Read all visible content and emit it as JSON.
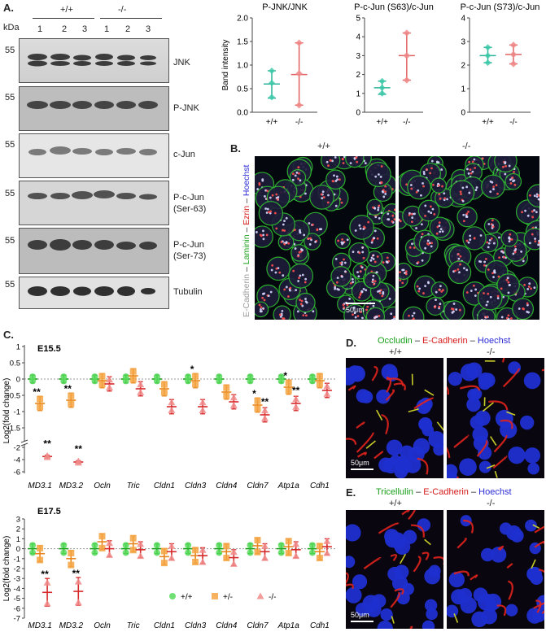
{
  "panelA": {
    "letter": "A.",
    "kda": "kDa",
    "genotype_wt": "+/+",
    "genotype_ko": "-/-",
    "lanes": [
      "1",
      "2",
      "3",
      "1",
      "2",
      "3"
    ],
    "blots": [
      {
        "label": "JNK",
        "marker": "55"
      },
      {
        "label": "P-JNK",
        "marker": "55"
      },
      {
        "label": "c-Jun",
        "marker": "55"
      },
      {
        "label": "P-c-Jun\n(Ser-63)",
        "marker": "55"
      },
      {
        "label": "P-c-Jun\n(Ser-73)",
        "marker": "55"
      },
      {
        "label": "Tubulin",
        "marker": "55"
      }
    ]
  },
  "quant_charts": [
    {
      "title": "P-JNK/JNK",
      "ylabel": "Band intensity",
      "ylim": [
        0,
        2.0
      ],
      "yticks": [
        "0.0",
        "0.5",
        "1.0",
        "1.5",
        "2.0"
      ],
      "categories": [
        "+/+",
        "-/-"
      ],
      "means": [
        0.6,
        0.8
      ],
      "sd": [
        [
          0.3,
          0.88
        ],
        [
          0.15,
          1.47
        ]
      ],
      "points": [
        [
          0.32,
          0.62,
          0.88
        ],
        [
          0.15,
          0.82,
          1.47
        ]
      ]
    },
    {
      "title": "P-c-Jun (S63)/c-Jun",
      "ylabel": "",
      "ylim": [
        0,
        5
      ],
      "yticks": [
        "0",
        "1",
        "2",
        "3",
        "4",
        "5"
      ],
      "categories": [
        "+/+",
        "-/-"
      ],
      "means": [
        1.3,
        3.0
      ],
      "sd": [
        [
          0.95,
          1.65
        ],
        [
          1.7,
          4.2
        ]
      ],
      "points": [
        [
          1.0,
          1.3,
          1.65
        ],
        [
          1.7,
          3.0,
          4.2
        ]
      ]
    },
    {
      "title": "P-c-Jun (S73)/c-Jun",
      "ylabel": "",
      "ylim": [
        0,
        4
      ],
      "yticks": [
        "0",
        "1",
        "2",
        "3",
        "4"
      ],
      "categories": [
        "+/+",
        "-/-"
      ],
      "means": [
        2.4,
        2.45
      ],
      "sd": [
        [
          2.1,
          2.75
        ],
        [
          2.05,
          2.85
        ]
      ],
      "points": [
        [
          2.1,
          2.4,
          2.75
        ],
        [
          2.05,
          2.45,
          2.85
        ]
      ]
    }
  ],
  "panelB": {
    "letter": "B.",
    "genotype_wt": "+/+",
    "genotype_ko": "-/-",
    "stain_ecad": "E-Cadherin",
    "stain_lam": "Laminin",
    "stain_ezr": "Ezrin",
    "stain_hoe": "Hoechst",
    "sep": " – ",
    "scalebar": "50μm",
    "colors": {
      "ecad": "#b5b5b5",
      "lam": "#1aa01a",
      "ezr": "#d81b1b",
      "hoe": "#2b2bd8"
    }
  },
  "panelC": {
    "letter": "C.",
    "genes": [
      "MD3.1",
      "MD3.2",
      "Ocln",
      "Tric",
      "Cldn1",
      "Cldn3",
      "Cldn4",
      "Cldn7",
      "Atp1a",
      "Cdh1"
    ],
    "ylabel": "Log2(fold change)",
    "legend": [
      "+/+",
      "+/-",
      "-/-"
    ],
    "colors": {
      "wt": "#57d95c",
      "het": "#f5a442",
      "ko": "#f08a8a",
      "wt_line": "#1a9e1a",
      "het_line": "#e8851c",
      "ko_line": "#d62828"
    }
  },
  "chart_data": [
    {
      "type": "scatter",
      "title": "E15.5",
      "categories": [
        "MD3.1",
        "MD3.2",
        "Ocln",
        "Tric",
        "Cldn1",
        "Cldn3",
        "Cldn4",
        "Cldn7",
        "Atp1a",
        "Cdh1"
      ],
      "ylabel": "Log2(fold change)",
      "yticks_top": [
        "1",
        "0.5",
        "0",
        "-0.5",
        "-1",
        "-1.5",
        "-2"
      ],
      "yticks_bottom": [
        "-2",
        "-4",
        "-6"
      ],
      "series": [
        {
          "name": "+/+",
          "values": [
            0,
            0,
            0,
            0,
            0,
            0,
            0,
            0,
            0,
            0
          ]
        },
        {
          "name": "+/-",
          "values": [
            -0.75,
            -0.65,
            -0.05,
            0.1,
            -0.3,
            -0.05,
            -0.4,
            -0.8,
            -0.25,
            -0.05
          ]
        },
        {
          "name": "-/-",
          "values": [
            -3.5,
            -4.4,
            -0.15,
            -0.3,
            -0.85,
            -0.85,
            -0.7,
            -1.1,
            -0.75,
            -0.35
          ]
        }
      ],
      "significance": [
        "**",
        "**",
        "",
        "",
        "",
        "*",
        "",
        "*",
        "*",
        ""
      ],
      "significance_ko": [
        "**",
        "**",
        "",
        "",
        "",
        "",
        "",
        "**",
        "**",
        ""
      ]
    },
    {
      "type": "scatter",
      "title": "E17.5",
      "categories": [
        "MD3.1",
        "MD3.2",
        "Ocln",
        "Tric",
        "Cldn1",
        "Cldn3",
        "Cldn4",
        "Cldn7",
        "Atp1a",
        "Cdh1"
      ],
      "ylabel": "Log2(fold change)",
      "ylim": [
        -7,
        3
      ],
      "yticks": [
        "3",
        "2",
        "1",
        "0",
        "-1",
        "-2",
        "-3",
        "-4",
        "-5",
        "-6",
        "-7"
      ],
      "series": [
        {
          "name": "+/+",
          "values": [
            0,
            0,
            0,
            0,
            0,
            0,
            0,
            0,
            0,
            0
          ]
        },
        {
          "name": "+/-",
          "values": [
            -0.5,
            -1.0,
            0.7,
            0.5,
            -0.8,
            -0.7,
            -0.3,
            0.3,
            0.2,
            -0.3
          ]
        },
        {
          "name": "-/-",
          "values": [
            -4.4,
            -4.3,
            0.0,
            -0.1,
            -0.3,
            -0.7,
            -0.9,
            -0.3,
            -0.1,
            0.2
          ]
        }
      ],
      "significance": [
        "**",
        "**",
        "",
        "",
        "",
        "",
        "",
        "",
        "",
        ""
      ]
    }
  ],
  "panelD": {
    "letter": "D.",
    "stain1": "Occludin",
    "stain2": "E-Cadherin",
    "stain3": "Hoechst",
    "sep": " – ",
    "genotype_wt": "+/+",
    "genotype_ko": "-/-",
    "scalebar": "50μm"
  },
  "panelE": {
    "letter": "E.",
    "stain1": "Tricellulin",
    "stain2": "E-Cadherin",
    "stain3": "Hoechst",
    "sep": " – ",
    "genotype_wt": "+/+",
    "genotype_ko": "-/-",
    "scalebar": "50μm"
  }
}
